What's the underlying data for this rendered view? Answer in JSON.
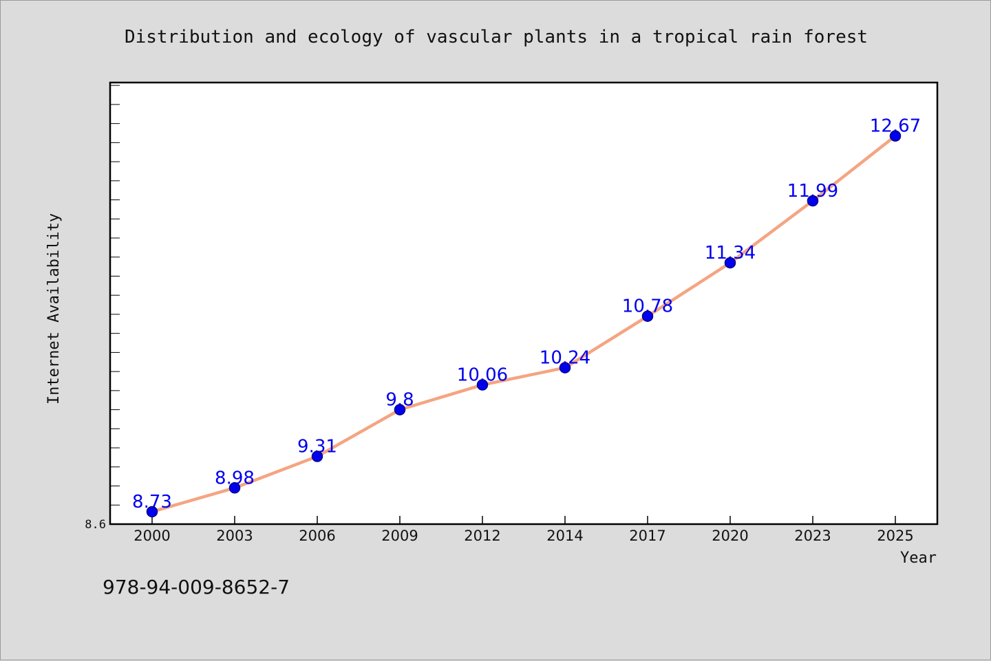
{
  "chart_data": {
    "type": "line",
    "title": "Distribution and ecology of vascular plants in a tropical rain forest",
    "xlabel": "Year",
    "ylabel": "Internet Availability",
    "categories": [
      "2000",
      "2003",
      "2006",
      "2009",
      "2012",
      "2014",
      "2017",
      "2020",
      "2023",
      "2025"
    ],
    "series": [
      {
        "values": [
          8.73,
          8.98,
          9.31,
          9.8,
          10.06,
          10.24,
          10.78,
          11.34,
          11.99,
          12.67
        ],
        "data_labels": [
          "8.73",
          "8.98",
          "9.31",
          "9.8",
          "10.06",
          "10.24",
          "10.78",
          "11.34",
          "11.99",
          "12.67"
        ]
      }
    ],
    "ylim": [
      8.6,
      13.23
    ],
    "yticks_labeled": [
      "8.6"
    ],
    "grid": false,
    "legend": "none",
    "colors": {
      "line": "#f4a582",
      "marker": "#0000ee",
      "marker_edge": "#00008b",
      "data_label": "#0000ee",
      "plot_bg": "#ffffff",
      "page_bg": "#dcdcdc"
    }
  },
  "footer": {
    "isbn": "978-94-009-8652-7"
  }
}
